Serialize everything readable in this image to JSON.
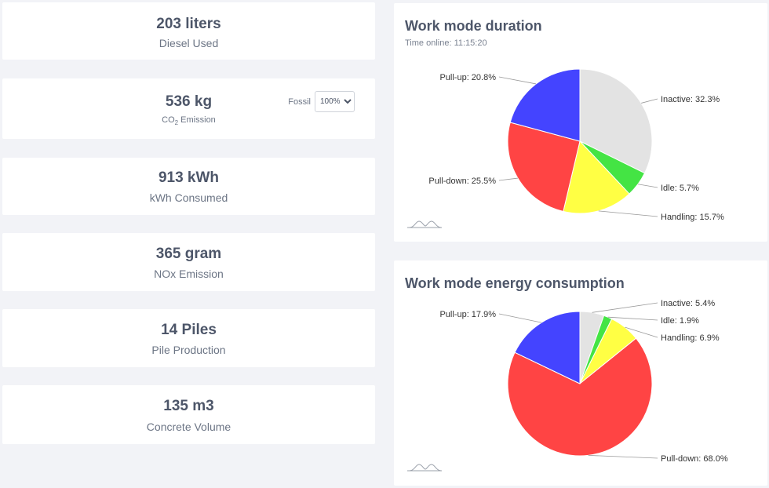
{
  "stats": [
    {
      "value": "203 liters",
      "label": "Diesel Used"
    },
    {
      "value": "536 kg",
      "label_main": "CO",
      "label_sub": "2",
      "label_rest": " Emission",
      "fossil_label": "Fossil",
      "fossil_selected": "100%"
    },
    {
      "value": "913 kWh",
      "label": "kWh Consumed"
    },
    {
      "value": "365 gram",
      "label": "NOx Emission"
    },
    {
      "value": "14 Piles",
      "label": "Pile Production"
    },
    {
      "value": "135 m3",
      "label": "Concrete Volume"
    }
  ],
  "colors": {
    "Inactive": "#e3e3e3",
    "Idle": "#44e444",
    "Handling": "#ffff44",
    "Pull-down": "#ff4444",
    "Pull-up": "#4444ff"
  },
  "chart_data": [
    {
      "type": "pie",
      "title": "Work mode duration",
      "subtitle": "Time online: 11:15:20",
      "slices": [
        {
          "name": "Inactive",
          "value": 32.3,
          "label": "Inactive: 32.3%"
        },
        {
          "name": "Idle",
          "value": 5.7,
          "label": "Idle: 5.7%"
        },
        {
          "name": "Handling",
          "value": 15.7,
          "label": "Handling: 15.7%"
        },
        {
          "name": "Pull-down",
          "value": 25.5,
          "label": "Pull-down: 25.5%"
        },
        {
          "name": "Pull-up",
          "value": 20.8,
          "label": "Pull-up: 20.8%"
        }
      ]
    },
    {
      "type": "pie",
      "title": "Work mode energy consumption",
      "slices": [
        {
          "name": "Inactive",
          "value": 5.4,
          "label": "Inactive: 5.4%"
        },
        {
          "name": "Idle",
          "value": 1.9,
          "label": "Idle: 1.9%"
        },
        {
          "name": "Handling",
          "value": 6.9,
          "label": "Handling: 6.9%"
        },
        {
          "name": "Pull-down",
          "value": 68.0,
          "label": "Pull-down: 68.0%"
        },
        {
          "name": "Pull-up",
          "value": 17.9,
          "label": "Pull-up: 17.9%"
        }
      ]
    }
  ]
}
